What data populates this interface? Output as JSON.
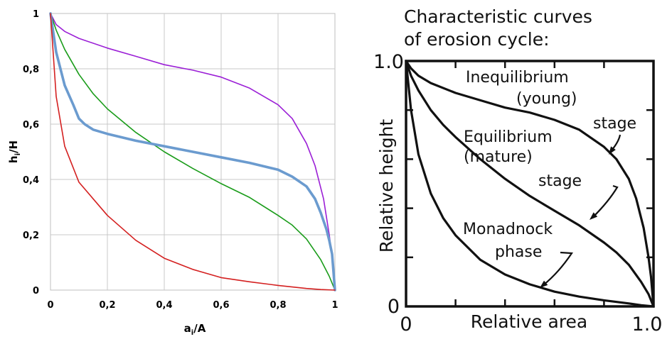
{
  "chart_data": [
    {
      "type": "line",
      "xlabel": "a",
      "xlabel_sub": "i",
      "xlabel_tail": "/A",
      "ylabel": "h",
      "ylabel_sub": "i",
      "ylabel_tail": "/H",
      "xlim": [
        0,
        1
      ],
      "ylim": [
        0,
        1
      ],
      "xticks": [
        "0",
        "0,2",
        "0,4",
        "0,6",
        "0,8",
        "1"
      ],
      "yticks": [
        "0",
        "0,2",
        "0,4",
        "0,6",
        "0,8",
        "1"
      ],
      "grid": true,
      "series": [
        {
          "color": "#9b1fd6",
          "width": 1.6,
          "x": [
            0,
            0.02,
            0.05,
            0.1,
            0.2,
            0.3,
            0.4,
            0.5,
            0.6,
            0.7,
            0.8,
            0.85,
            0.9,
            0.93,
            0.96,
            0.98,
            0.99,
            1.0
          ],
          "y": [
            1.0,
            0.96,
            0.935,
            0.91,
            0.875,
            0.845,
            0.815,
            0.795,
            0.77,
            0.73,
            0.67,
            0.62,
            0.53,
            0.45,
            0.33,
            0.2,
            0.12,
            0.0
          ]
        },
        {
          "color": "#1a9c1a",
          "width": 1.6,
          "x": [
            0,
            0.02,
            0.05,
            0.1,
            0.15,
            0.2,
            0.3,
            0.4,
            0.5,
            0.6,
            0.7,
            0.8,
            0.85,
            0.9,
            0.95,
            0.98,
            1.0
          ],
          "y": [
            1.0,
            0.94,
            0.87,
            0.78,
            0.71,
            0.655,
            0.57,
            0.5,
            0.44,
            0.385,
            0.335,
            0.27,
            0.235,
            0.185,
            0.11,
            0.05,
            0.0
          ]
        },
        {
          "color": "#6b9bcf",
          "width": 3.6,
          "x": [
            0,
            0.02,
            0.05,
            0.08,
            0.1,
            0.12,
            0.15,
            0.2,
            0.3,
            0.4,
            0.5,
            0.6,
            0.7,
            0.8,
            0.85,
            0.9,
            0.93,
            0.95,
            0.97,
            0.98,
            0.99,
            1.0
          ],
          "y": [
            1.0,
            0.86,
            0.74,
            0.67,
            0.62,
            0.6,
            0.58,
            0.565,
            0.54,
            0.52,
            0.5,
            0.48,
            0.46,
            0.435,
            0.41,
            0.375,
            0.33,
            0.28,
            0.22,
            0.18,
            0.13,
            0.0
          ]
        },
        {
          "color": "#d42020",
          "width": 1.6,
          "x": [
            0,
            0.02,
            0.05,
            0.1,
            0.15,
            0.2,
            0.3,
            0.4,
            0.5,
            0.6,
            0.7,
            0.8,
            0.9,
            0.95,
            1.0
          ],
          "y": [
            1.0,
            0.7,
            0.52,
            0.39,
            0.33,
            0.27,
            0.18,
            0.115,
            0.075,
            0.045,
            0.03,
            0.017,
            0.006,
            0.002,
            0.0
          ]
        }
      ]
    },
    {
      "type": "line",
      "title_line1": "Characteristic curves",
      "title_line2": "of erosion cycle:",
      "xlabel": "Relative area",
      "ylabel": "Relative height",
      "xlim": [
        0,
        1
      ],
      "ylim": [
        0,
        1
      ],
      "xticks": [
        "0",
        "1.0"
      ],
      "yticks": [
        "0",
        "1.0"
      ],
      "grid": false,
      "series": [
        {
          "color": "#111111",
          "width": 3.2,
          "x": [
            0,
            0.02,
            0.05,
            0.1,
            0.2,
            0.3,
            0.4,
            0.5,
            0.6,
            0.7,
            0.8,
            0.85,
            0.9,
            0.93,
            0.96,
            0.98,
            0.99,
            1.0
          ],
          "y": [
            1.0,
            0.97,
            0.94,
            0.91,
            0.87,
            0.84,
            0.81,
            0.79,
            0.76,
            0.72,
            0.65,
            0.6,
            0.52,
            0.44,
            0.32,
            0.2,
            0.12,
            0.0
          ]
        },
        {
          "color": "#111111",
          "width": 3.2,
          "x": [
            0,
            0.02,
            0.05,
            0.1,
            0.15,
            0.2,
            0.3,
            0.4,
            0.5,
            0.6,
            0.7,
            0.8,
            0.85,
            0.9,
            0.95,
            0.98,
            1.0
          ],
          "y": [
            1.0,
            0.94,
            0.88,
            0.8,
            0.74,
            0.69,
            0.6,
            0.52,
            0.45,
            0.39,
            0.33,
            0.26,
            0.22,
            0.17,
            0.1,
            0.05,
            0.0
          ]
        },
        {
          "color": "#111111",
          "width": 3.2,
          "x": [
            0,
            0.02,
            0.05,
            0.1,
            0.15,
            0.2,
            0.3,
            0.4,
            0.5,
            0.6,
            0.7,
            0.8,
            0.9,
            0.95,
            1.0
          ],
          "y": [
            1.0,
            0.8,
            0.62,
            0.46,
            0.36,
            0.29,
            0.19,
            0.13,
            0.09,
            0.06,
            0.04,
            0.025,
            0.012,
            0.005,
            0.0
          ]
        }
      ],
      "annotations": [
        {
          "lines": [
            "Inequilibrium",
            "(young)"
          ]
        },
        {
          "lines": [
            "stage"
          ]
        },
        {
          "lines": [
            "Equilibrium",
            "(mature)"
          ]
        },
        {
          "lines": [
            "stage"
          ]
        },
        {
          "lines": [
            "Monadnock",
            "phase"
          ]
        }
      ]
    }
  ]
}
